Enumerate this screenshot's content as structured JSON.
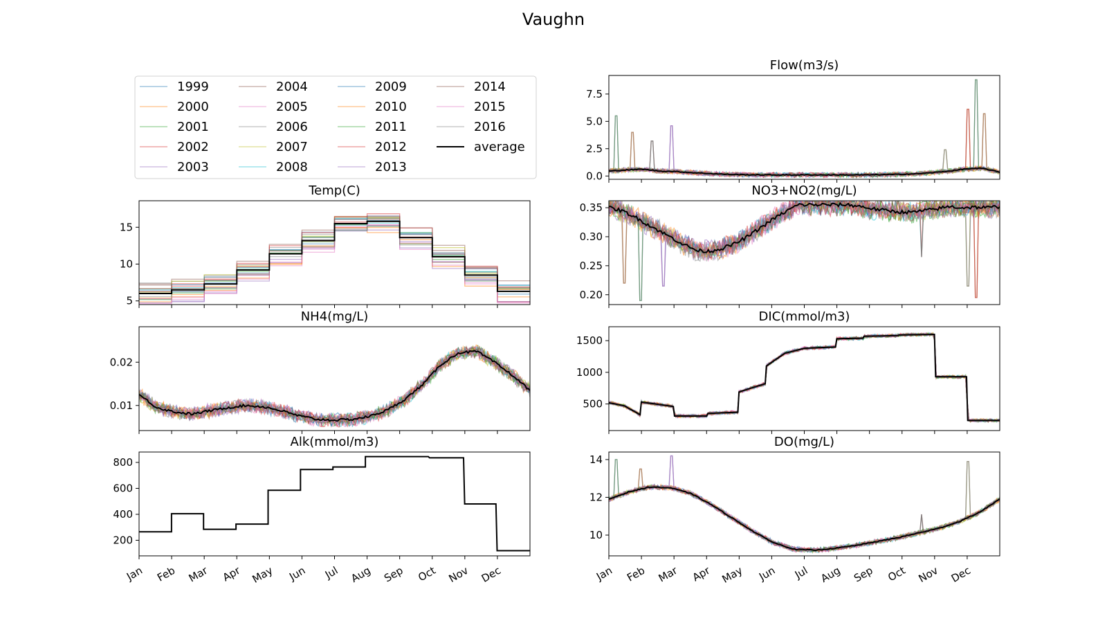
{
  "figure_title": "Vaughn",
  "months": [
    "Jan",
    "Feb",
    "Mar",
    "Apr",
    "May",
    "Jun",
    "Jul",
    "Aug",
    "Sep",
    "Oct",
    "Nov",
    "Dec"
  ],
  "legend": {
    "entries": [
      {
        "label": "1999",
        "color": "#1f77b4"
      },
      {
        "label": "2000",
        "color": "#ff7f0e"
      },
      {
        "label": "2001",
        "color": "#2ca02c"
      },
      {
        "label": "2002",
        "color": "#d62728"
      },
      {
        "label": "2003",
        "color": "#9467bd"
      },
      {
        "label": "2004",
        "color": "#8c564b"
      },
      {
        "label": "2005",
        "color": "#e377c2"
      },
      {
        "label": "2006",
        "color": "#7f7f7f"
      },
      {
        "label": "2007",
        "color": "#bcbd22"
      },
      {
        "label": "2008",
        "color": "#17becf"
      },
      {
        "label": "2009",
        "color": "#1f77b4"
      },
      {
        "label": "2010",
        "color": "#ff7f0e"
      },
      {
        "label": "2011",
        "color": "#2ca02c"
      },
      {
        "label": "2012",
        "color": "#d62728"
      },
      {
        "label": "2013",
        "color": "#9467bd"
      },
      {
        "label": "2014",
        "color": "#8c564b"
      },
      {
        "label": "2015",
        "color": "#e377c2"
      },
      {
        "label": "2016",
        "color": "#7f7f7f"
      },
      {
        "label": "average",
        "color": "#000000"
      }
    ]
  },
  "chart_data": [
    {
      "id": "flow",
      "type": "line",
      "title": "Flow(m3/s)",
      "ylim": [
        -0.3,
        9.2
      ],
      "yticks": [
        0.0,
        2.5,
        5.0,
        7.5
      ],
      "ytick_labels": [
        "0.0",
        "2.5",
        "5.0",
        "7.5"
      ],
      "show_xticklabels": false,
      "average": [
        0.45,
        0.55,
        0.62,
        0.45,
        0.4,
        0.3,
        0.22,
        0.15,
        0.12,
        0.1,
        0.1,
        0.1,
        0.1,
        0.1,
        0.1,
        0.1,
        0.12,
        0.15,
        0.2,
        0.3,
        0.45,
        0.65,
        0.7,
        0.35
      ],
      "spread": 0.5,
      "spikes": [
        [
          0.02,
          5.5
        ],
        [
          0.06,
          4.0
        ],
        [
          0.16,
          4.6
        ],
        [
          0.11,
          3.2
        ],
        [
          0.86,
          2.4
        ],
        [
          0.92,
          6.1
        ],
        [
          0.94,
          8.8
        ],
        [
          0.96,
          5.7
        ]
      ]
    },
    {
      "id": "temp",
      "type": "line",
      "title": "Temp(C)",
      "ylim": [
        4.5,
        18.6
      ],
      "yticks": [
        5,
        10,
        15
      ],
      "ytick_labels": [
        "5",
        "10",
        "15"
      ],
      "show_xticklabels": false,
      "average": [
        6.0,
        6.5,
        7.3,
        9.2,
        11.4,
        13.2,
        15.5,
        15.8,
        13.6,
        11.0,
        8.5,
        6.3
      ],
      "spread": 1.2
    },
    {
      "id": "no3",
      "type": "line",
      "title": "NO3+NO2(mg/L)",
      "ylim": [
        0.183,
        0.362
      ],
      "yticks": [
        0.2,
        0.25,
        0.3,
        0.35
      ],
      "ytick_labels": [
        "0.20",
        "0.25",
        "0.30",
        "0.35"
      ],
      "show_xticklabels": false,
      "average": [
        0.35,
        0.345,
        0.335,
        0.322,
        0.31,
        0.298,
        0.286,
        0.276,
        0.275,
        0.28,
        0.288,
        0.3,
        0.315,
        0.33,
        0.343,
        0.355,
        0.355,
        0.355,
        0.355,
        0.355,
        0.352,
        0.348,
        0.345,
        0.343,
        0.342,
        0.345,
        0.348,
        0.352,
        0.35,
        0.351,
        0.35,
        0.352
      ],
      "spread": 0.04,
      "spikes": [
        [
          0.08,
          0.19
        ],
        [
          0.04,
          0.22
        ],
        [
          0.14,
          0.215
        ],
        [
          0.8,
          0.265
        ],
        [
          0.92,
          0.215
        ],
        [
          0.94,
          0.195
        ]
      ]
    },
    {
      "id": "nh4",
      "type": "line",
      "title": "NH4(mg/L)",
      "ylim": [
        0.0042,
        0.0282
      ],
      "yticks": [
        0.01,
        0.02
      ],
      "ytick_labels": [
        "0.01",
        "0.02"
      ],
      "show_xticklabels": false,
      "average": [
        0.0125,
        0.0095,
        0.0085,
        0.008,
        0.0088,
        0.0095,
        0.01,
        0.0097,
        0.0088,
        0.0076,
        0.0068,
        0.0066,
        0.0068,
        0.0075,
        0.009,
        0.0115,
        0.015,
        0.0195,
        0.0222,
        0.0225,
        0.02,
        0.017,
        0.0135
      ],
      "spread": 0.0035
    },
    {
      "id": "dic",
      "type": "line",
      "title": "DIC(mmol/m3)",
      "ylim": [
        80,
        1720
      ],
      "yticks": [
        500,
        1000,
        1500
      ],
      "ytick_labels": [
        "500",
        "1000",
        "1500"
      ],
      "show_xticklabels": false,
      "average": [
        [
          0,
          520
        ],
        [
          0.04,
          470
        ],
        [
          0.08,
          330
        ],
        [
          0.083,
          530
        ],
        [
          0.165,
          460
        ],
        [
          0.168,
          310
        ],
        [
          0.25,
          310
        ],
        [
          0.253,
          350
        ],
        [
          0.33,
          370
        ],
        [
          0.333,
          690
        ],
        [
          0.4,
          820
        ],
        [
          0.403,
          1100
        ],
        [
          0.45,
          1300
        ],
        [
          0.5,
          1380
        ],
        [
          0.58,
          1400
        ],
        [
          0.583,
          1530
        ],
        [
          0.65,
          1540
        ],
        [
          0.653,
          1570
        ],
        [
          0.74,
          1580
        ],
        [
          0.743,
          1590
        ],
        [
          0.833,
          1600
        ],
        [
          0.836,
          930
        ],
        [
          0.915,
          930
        ],
        [
          0.918,
          240
        ],
        [
          1.0,
          240
        ]
      ],
      "spread": 60
    },
    {
      "id": "alk",
      "type": "line",
      "title": "Alk(mmol/m3)",
      "ylim": [
        80,
        880
      ],
      "yticks": [
        200,
        400,
        600,
        800
      ],
      "ytick_labels": [
        "200",
        "400",
        "600",
        "800"
      ],
      "show_xticklabels": true,
      "average": [
        [
          0,
          265
        ],
        [
          0.083,
          265
        ],
        [
          0.083,
          405
        ],
        [
          0.165,
          405
        ],
        [
          0.165,
          285
        ],
        [
          0.248,
          285
        ],
        [
          0.248,
          325
        ],
        [
          0.33,
          325
        ],
        [
          0.33,
          585
        ],
        [
          0.413,
          585
        ],
        [
          0.413,
          745
        ],
        [
          0.496,
          745
        ],
        [
          0.496,
          765
        ],
        [
          0.579,
          765
        ],
        [
          0.579,
          845
        ],
        [
          0.74,
          845
        ],
        [
          0.743,
          835
        ],
        [
          0.83,
          835
        ],
        [
          0.833,
          480
        ],
        [
          0.913,
          480
        ],
        [
          0.916,
          120
        ],
        [
          1.0,
          120
        ]
      ],
      "spread": 0
    },
    {
      "id": "do",
      "type": "line",
      "title": "DO(mg/L)",
      "ylim": [
        8.9,
        14.4
      ],
      "yticks": [
        10,
        12,
        14
      ],
      "ytick_labels": [
        "10",
        "12",
        "14"
      ],
      "show_xticklabels": true,
      "average": [
        11.9,
        12.3,
        12.55,
        12.5,
        12.2,
        11.6,
        10.9,
        10.2,
        9.6,
        9.25,
        9.2,
        9.3,
        9.45,
        9.65,
        9.85,
        10.1,
        10.35,
        10.7,
        11.2,
        11.9
      ],
      "spread": 0.3,
      "spikes": [
        [
          0.02,
          14.0
        ],
        [
          0.08,
          13.5
        ],
        [
          0.16,
          14.2
        ],
        [
          0.8,
          11.1
        ],
        [
          0.92,
          13.9
        ]
      ]
    }
  ]
}
